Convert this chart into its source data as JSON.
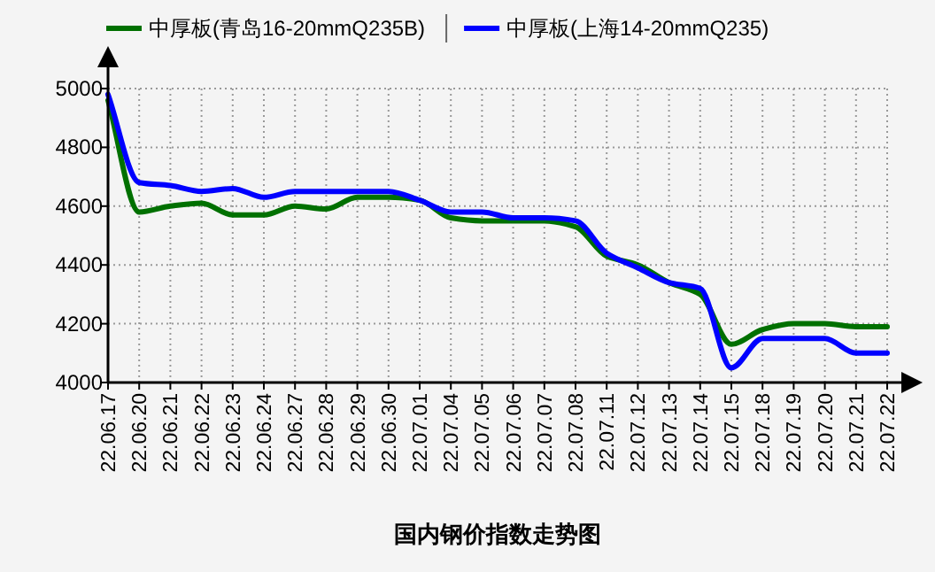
{
  "chart_data": {
    "type": "line",
    "title": "国内钢价指数走势图",
    "categories": [
      "22.06.17",
      "22.06.20",
      "22.06.21",
      "22.06.22",
      "22.06.23",
      "22.06.24",
      "22.06.27",
      "22.06.28",
      "22.06.29",
      "22.06.30",
      "22.07.01",
      "22.07.04",
      "22.07.05",
      "22.07.06",
      "22.07.07",
      "22.07.08",
      "22.07.11",
      "22.07.12",
      "22.07.13",
      "22.07.14",
      "22.07.15",
      "22.07.18",
      "22.07.19",
      "22.07.20",
      "22.07.21",
      "22.07.22"
    ],
    "series": [
      {
        "name": "中厚板(青岛16-20mmQ235B)",
        "color": "#007000",
        "values": [
          4960,
          4580,
          4600,
          4610,
          4570,
          4570,
          4600,
          4590,
          4630,
          4630,
          4620,
          4560,
          4550,
          4550,
          4550,
          4530,
          4430,
          4400,
          4340,
          4300,
          4130,
          4180,
          4200,
          4200,
          4190,
          4190
        ]
      },
      {
        "name": "中厚板(上海14-20mmQ235)",
        "color": "#0000ff",
        "values": [
          4980,
          4680,
          4670,
          4650,
          4660,
          4630,
          4650,
          4650,
          4650,
          4650,
          4620,
          4580,
          4580,
          4560,
          4560,
          4550,
          4440,
          4390,
          4340,
          4320,
          4050,
          4150,
          4150,
          4150,
          4100,
          4100
        ]
      }
    ],
    "ylim": [
      4000,
      5000
    ],
    "yticks": [
      4000,
      4200,
      4400,
      4600,
      4800,
      5000
    ],
    "grid": true,
    "legend": "top",
    "marker": "none",
    "line_style": "solid"
  }
}
